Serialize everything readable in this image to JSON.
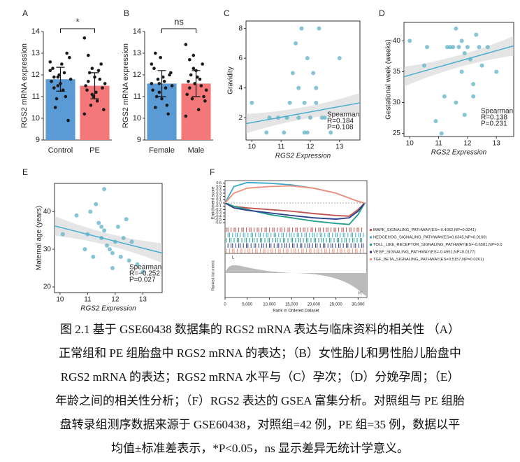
{
  "chart_data": [
    {
      "type": "bar",
      "label": "A",
      "ylabel": "RGS2 mRNA expression",
      "categories": [
        "Control",
        "PE"
      ],
      "colors": [
        "#5b9bd5",
        "#f4787a"
      ],
      "values": [
        11.8,
        11.5
      ],
      "errors": [
        0.55,
        0.6
      ],
      "points": [
        [
          12.2,
          11.9,
          11.5,
          12.5,
          11.0,
          12.8,
          11.7,
          10.5,
          12.0,
          11.3,
          13.0,
          11.8,
          12.3,
          10.9,
          11.6,
          12.1,
          9.9,
          12.6,
          11.4,
          11.9
        ],
        [
          13.7,
          12.9,
          12.3,
          11.2,
          11.8,
          10.4,
          11.5,
          12.1,
          11.0,
          10.8,
          12.5,
          11.6,
          11.3,
          10.6,
          11.9,
          12.2,
          11.4,
          10.2,
          11.7,
          11.1
        ]
      ],
      "ylim": [
        9,
        14
      ],
      "yticks": [
        9,
        10,
        11,
        12,
        13,
        14
      ],
      "annotation": "*"
    },
    {
      "type": "bar",
      "label": "B",
      "ylabel": "RGS2 mRNA expression",
      "categories": [
        "Female",
        "Male"
      ],
      "colors": [
        "#5b9bd5",
        "#f4787a"
      ],
      "values": [
        11.6,
        11.6
      ],
      "errors": [
        0.6,
        0.6
      ],
      "points": [
        [
          12.5,
          13.0,
          11.6,
          11.9,
          10.6,
          12.1,
          11.3,
          11.0,
          12.8,
          11.7,
          10.2,
          11.5,
          12.3,
          11.8,
          10.9,
          11.4,
          12.0,
          11.6,
          10.5,
          11.2
        ],
        [
          13.4,
          12.7,
          12.3,
          11.9,
          11.5,
          10.8,
          11.1,
          12.0,
          11.6,
          10.4,
          12.5,
          11.3,
          11.7,
          10.9,
          12.2,
          11.8,
          11.0,
          10.1,
          11.4,
          12.9
        ]
      ],
      "ylim": [
        9,
        14
      ],
      "yticks": [
        9,
        10,
        11,
        12,
        13,
        14
      ],
      "annotation": "ns"
    },
    {
      "type": "scatter",
      "label": "C",
      "xlabel": "RGS2 Expression",
      "ylabel": "Gravidity",
      "color": "#5fb0c8",
      "x": [
        10.0,
        10.5,
        10.9,
        11.2,
        11.4,
        11.5,
        11.6,
        11.7,
        11.8,
        11.9,
        12.0,
        12.1,
        12.2,
        12.3,
        12.5,
        12.7,
        13.0,
        11.3,
        11.6,
        11.9,
        12.4,
        11.1,
        11.8,
        12.2,
        10.6
      ],
      "y": [
        3,
        1,
        2,
        2,
        5,
        7,
        2,
        8,
        1,
        6,
        2,
        5,
        3,
        8,
        2,
        1,
        6,
        3,
        4,
        1,
        2,
        1,
        3,
        4,
        2
      ],
      "fit_x": [
        9.8,
        13.7
      ],
      "fit_y": [
        1.6,
        3.0
      ],
      "annotations": [
        "Spearman",
        "R=0.184",
        "P=0.108"
      ],
      "xlim": [
        9.8,
        13.7
      ],
      "xticks": [
        10,
        11,
        12,
        13
      ],
      "ylim": [
        0.5,
        8.5
      ],
      "yticks": [
        2,
        4,
        6,
        8
      ]
    },
    {
      "type": "scatter",
      "label": "D",
      "xlabel": "RGS2 Expression",
      "ylabel": "Gestational week (weeks)",
      "color": "#5fb0c8",
      "x": [
        10.0,
        10.5,
        10.9,
        11.2,
        11.4,
        11.5,
        11.6,
        11.7,
        11.8,
        11.9,
        12.0,
        12.1,
        12.2,
        12.3,
        12.5,
        12.7,
        13.0,
        11.3,
        11.6,
        11.9,
        12.4,
        11.1,
        11.8,
        12.2,
        10.6
      ],
      "y": [
        40,
        36,
        27,
        31,
        39,
        39,
        42,
        39,
        35,
        38,
        39,
        37,
        31,
        41,
        36,
        39,
        35,
        39,
        30,
        28,
        39,
        25,
        40,
        33,
        39
      ],
      "fit_x": [
        9.8,
        13.6
      ],
      "fit_y": [
        34.2,
        39.2
      ],
      "annotations": [
        "Spearman",
        "R=0.138",
        "P=0.231"
      ],
      "xlim": [
        9.8,
        13.6
      ],
      "xticks": [
        10,
        11,
        12,
        13
      ],
      "ylim": [
        24.5,
        43
      ],
      "yticks": [
        25,
        30,
        35,
        40
      ]
    },
    {
      "type": "scatter",
      "label": "E",
      "xlabel": "RGS2 Expression",
      "ylabel": "Maternal age (years)",
      "color": "#5fb0c8",
      "x": [
        10.1,
        10.6,
        10.9,
        11.2,
        11.3,
        11.5,
        11.6,
        11.4,
        11.8,
        11.9,
        12.0,
        12.1,
        12.2,
        12.4,
        11.7,
        12.5,
        12.3,
        11.6,
        11.1,
        13.0,
        12.8,
        11.0,
        11.9,
        11.5,
        12.6
      ],
      "y": [
        34,
        39,
        30,
        28,
        42,
        33,
        46,
        37,
        30,
        25,
        32,
        36,
        28,
        38,
        31,
        27,
        33,
        35,
        40,
        24,
        26,
        34,
        29,
        36,
        32
      ],
      "fit_x": [
        9.8,
        13.7
      ],
      "fit_y": [
        36.2,
        29.0
      ],
      "annotations": [
        "Spearman",
        "R=−0.252",
        "P=0.027"
      ],
      "xlim": [
        9.8,
        13.7
      ],
      "xticks": [
        10,
        11,
        12,
        13
      ],
      "ylim": [
        18.5,
        47.5
      ],
      "yticks": [
        20,
        30,
        40
      ]
    },
    {
      "type": "line",
      "label": "F",
      "ylabel": "Enrichment score",
      "y2label": "Ranked list metric",
      "xlabel": "Rank in Ordered Dataset",
      "low_label": "L",
      "high_label": "H",
      "x": [
        0,
        2000,
        5000,
        10000,
        15000,
        20000,
        25000,
        28000,
        30000,
        31500
      ],
      "series": [
        {
          "name": "MAPK_SIGNALING_PATHWAY(ES=-0.4062,NP=0.0041)",
          "color": "#c0504d",
          "values": [
            0,
            -0.1,
            -0.15,
            -0.2,
            -0.25,
            -0.32,
            -0.38,
            -0.4,
            -0.2,
            0
          ]
        },
        {
          "name": "HEDGEHOG_SIGNALING_PATHWAY(ES=0.6345,NP=0.0100)",
          "color": "#3aa8c8",
          "values": [
            0,
            0.5,
            0.62,
            0.6,
            0.55,
            0.45,
            0.3,
            0.15,
            0.05,
            0
          ]
        },
        {
          "name": "TOLL_LIKE_RECEPTOR_SIGNALING_PATHWAY(ES=-0.6501,NP=0.0",
          "color": "#1f9e89",
          "values": [
            0,
            -0.1,
            -0.2,
            -0.35,
            -0.45,
            -0.55,
            -0.62,
            -0.65,
            -0.35,
            0
          ]
        },
        {
          "name": "VEGF_SIGNALING_PATHWAY(ES=-0.4951,NP=0.0177)",
          "color": "#2c3e8c",
          "values": [
            0,
            -0.15,
            -0.22,
            -0.3,
            -0.38,
            -0.45,
            -0.49,
            -0.45,
            -0.25,
            0
          ]
        },
        {
          "name": "TGF_BETA_SIGNALING_PATHWAY(ES=0.5157,NP=0.0261)",
          "color": "#f0907a",
          "values": [
            0,
            0.3,
            0.45,
            0.5,
            0.52,
            0.45,
            0.3,
            0.15,
            0.05,
            0
          ]
        }
      ],
      "xlim": [
        0,
        32000
      ],
      "xticks": [
        0,
        {
          "value": 5000,
          "label": "5,000"
        },
        {
          "value": 10000,
          "label": "10,000"
        },
        {
          "value": 15000,
          "label": "15,000"
        },
        {
          "value": 20000,
          "label": "20,000"
        },
        {
          "value": 25000,
          "label": "25,000"
        },
        {
          "value": 30000,
          "label": "30,000"
        }
      ],
      "ylim": [
        -0.68,
        0.68
      ],
      "yticks": [
        0.6,
        0.5,
        0.4,
        0.3,
        0.2,
        0.1,
        {
          "value": 0,
          "label": "0.0"
        },
        -0.1,
        -0.2,
        -0.3,
        -0.4,
        -0.5,
        -0.6
      ]
    }
  ],
  "caption": [
    "图 2.1  基于 GSE60438 数据集的 RGS2 mRNA 表达与临床资料的相关性 （A）",
    "正常组和 PE 组胎盘中 RGS2 mRNA 的表达；（B）女性胎儿和男性胎儿胎盘中",
    "RGS2 mRNA 的表达；RGS2 mRNA 水平与（C）孕次；（D）分娩孕周；（E）",
    "年龄之间的相关性分析；（F）RGS2 表达的 GSEA 富集分析。对照组与 PE 组胎",
    "盘转录组测序数据来源于 GSE60438，对照组=42 例，PE 组=35 例，数据以平",
    "均值±标准差表示，*P<0.05，ns 显示差异无统计学意义。"
  ]
}
